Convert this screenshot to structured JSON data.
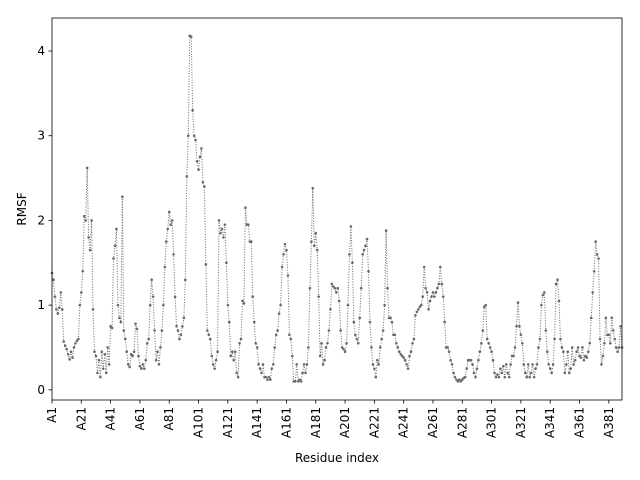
{
  "chart_data": {
    "type": "line",
    "xlabel": "Residue index",
    "ylabel": "RMSF",
    "color": "#696969",
    "linestyle": "dotted",
    "markers": true,
    "xlim": [
      0,
      389
    ],
    "ylim": [
      -0.12,
      4.39
    ],
    "xticks": [
      {
        "value": 0,
        "label": "A1"
      },
      {
        "value": 20,
        "label": "A21"
      },
      {
        "value": 40,
        "label": "A41"
      },
      {
        "value": 60,
        "label": "A61"
      },
      {
        "value": 80,
        "label": "A81"
      },
      {
        "value": 100,
        "label": "A101"
      },
      {
        "value": 120,
        "label": "A121"
      },
      {
        "value": 140,
        "label": "A141"
      },
      {
        "value": 160,
        "label": "A161"
      },
      {
        "value": 180,
        "label": "A181"
      },
      {
        "value": 200,
        "label": "A201"
      },
      {
        "value": 220,
        "label": "A221"
      },
      {
        "value": 240,
        "label": "A241"
      },
      {
        "value": 260,
        "label": "A261"
      },
      {
        "value": 280,
        "label": "A281"
      },
      {
        "value": 300,
        "label": "A301"
      },
      {
        "value": 320,
        "label": "A321"
      },
      {
        "value": 340,
        "label": "A341"
      },
      {
        "value": 360,
        "label": "A361"
      },
      {
        "value": 380,
        "label": "A381"
      }
    ],
    "yticks": [
      0,
      1,
      2,
      3,
      4
    ],
    "values": [
      1.38,
      1.3,
      1.1,
      0.95,
      0.9,
      0.97,
      1.15,
      0.95,
      0.57,
      0.52,
      0.48,
      0.42,
      0.36,
      0.45,
      0.38,
      0.5,
      0.55,
      0.58,
      0.6,
      1.0,
      1.15,
      1.4,
      2.05,
      2.0,
      2.62,
      1.8,
      1.65,
      2.0,
      0.95,
      0.45,
      0.4,
      0.2,
      0.35,
      0.15,
      0.45,
      0.25,
      0.42,
      0.2,
      0.5,
      0.3,
      0.75,
      0.73,
      1.55,
      1.7,
      1.9,
      1.0,
      0.85,
      0.8,
      2.28,
      0.7,
      0.6,
      0.45,
      0.3,
      0.27,
      0.42,
      0.4,
      0.45,
      0.78,
      0.72,
      0.4,
      0.28,
      0.25,
      0.3,
      0.25,
      0.35,
      0.55,
      0.6,
      1.0,
      1.3,
      1.1,
      0.7,
      0.35,
      0.45,
      0.3,
      0.5,
      0.7,
      1.0,
      1.45,
      1.75,
      1.9,
      2.1,
      1.95,
      2.0,
      1.6,
      1.1,
      0.75,
      0.7,
      0.6,
      0.65,
      0.75,
      0.85,
      1.3,
      2.52,
      3.0,
      4.18,
      4.17,
      3.3,
      3.0,
      2.95,
      2.7,
      2.6,
      2.75,
      2.85,
      2.45,
      2.4,
      1.48,
      0.7,
      0.65,
      0.6,
      0.4,
      0.3,
      0.25,
      0.35,
      0.45,
      2.0,
      1.85,
      1.9,
      1.8,
      1.95,
      1.5,
      1.0,
      0.8,
      0.4,
      0.45,
      0.35,
      0.45,
      0.2,
      0.15,
      0.55,
      0.6,
      1.05,
      1.02,
      2.15,
      1.95,
      1.95,
      1.75,
      1.75,
      1.1,
      0.8,
      0.55,
      0.5,
      0.3,
      0.25,
      0.2,
      0.3,
      0.15,
      0.15,
      0.12,
      0.15,
      0.12,
      0.25,
      0.3,
      0.5,
      0.65,
      0.7,
      0.9,
      1.0,
      1.45,
      1.6,
      1.72,
      1.65,
      1.35,
      0.65,
      0.6,
      0.4,
      0.1,
      0.1,
      0.3,
      0.1,
      0.12,
      0.1,
      0.2,
      0.3,
      0.2,
      0.3,
      0.5,
      1.2,
      1.75,
      2.38,
      1.7,
      1.85,
      1.65,
      1.1,
      0.4,
      0.55,
      0.3,
      0.35,
      0.5,
      0.55,
      0.7,
      0.95,
      1.25,
      1.22,
      1.2,
      1.15,
      1.2,
      1.05,
      0.7,
      0.5,
      0.48,
      0.45,
      0.55,
      1.0,
      1.6,
      1.93,
      1.5,
      0.8,
      0.65,
      0.6,
      0.55,
      0.85,
      1.2,
      1.6,
      1.65,
      1.7,
      1.78,
      1.4,
      0.8,
      0.5,
      0.3,
      0.25,
      0.15,
      0.35,
      0.3,
      0.5,
      0.6,
      0.7,
      1.0,
      1.88,
      1.2,
      0.85,
      0.85,
      0.8,
      0.65,
      0.65,
      0.55,
      0.5,
      0.45,
      0.42,
      0.4,
      0.38,
      0.35,
      0.3,
      0.25,
      0.4,
      0.45,
      0.55,
      0.6,
      0.88,
      0.92,
      0.95,
      0.98,
      1.0,
      1.1,
      1.45,
      1.2,
      1.15,
      0.95,
      1.05,
      1.1,
      1.15,
      1.1,
      1.15,
      1.2,
      1.25,
      1.45,
      1.25,
      1.1,
      0.8,
      0.5,
      0.5,
      0.45,
      0.35,
      0.3,
      0.2,
      0.15,
      0.12,
      0.1,
      0.12,
      0.1,
      0.12,
      0.14,
      0.15,
      0.25,
      0.35,
      0.35,
      0.35,
      0.3,
      0.2,
      0.15,
      0.25,
      0.35,
      0.45,
      0.55,
      0.7,
      0.98,
      1.0,
      0.6,
      0.55,
      0.5,
      0.45,
      0.35,
      0.2,
      0.15,
      0.18,
      0.15,
      0.25,
      0.2,
      0.28,
      0.15,
      0.3,
      0.2,
      0.15,
      0.3,
      0.4,
      0.4,
      0.5,
      0.75,
      1.03,
      0.75,
      0.65,
      0.55,
      0.3,
      0.2,
      0.15,
      0.3,
      0.15,
      0.2,
      0.3,
      0.15,
      0.25,
      0.3,
      0.5,
      0.6,
      1.0,
      1.12,
      1.15,
      0.7,
      0.45,
      0.3,
      0.25,
      0.2,
      0.3,
      0.6,
      1.25,
      1.3,
      1.05,
      0.6,
      0.5,
      0.45,
      0.2,
      0.3,
      0.45,
      0.2,
      0.25,
      0.5,
      0.3,
      0.35,
      0.45,
      0.5,
      0.4,
      0.38,
      0.5,
      0.35,
      0.4,
      0.38,
      0.45,
      0.55,
      0.85,
      1.15,
      1.4,
      1.75,
      1.6,
      1.55,
      0.6,
      0.3,
      0.4,
      0.55,
      0.85,
      0.65,
      0.65,
      0.55,
      0.85,
      0.7,
      0.6,
      0.5,
      0.45,
      0.5,
      0.75,
      0.5
    ]
  }
}
